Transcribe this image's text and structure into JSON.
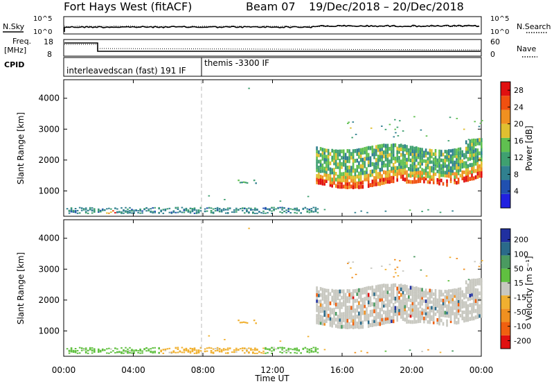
{
  "header": {
    "radar": "Fort Hays West (fitACF)",
    "beam": "Beam 07",
    "dates": "19/Dec/2018 – 20/Dec/2018"
  },
  "noise_panel": {
    "left_label": "N.Sky",
    "right_label": "N.Search",
    "ticks_left": [
      "10^5",
      "10^0"
    ],
    "ticks_right": [
      "10^5",
      "10^0"
    ]
  },
  "freq_panel": {
    "left_label_line1": "Freq.",
    "left_label_line2": "[MHz]",
    "right_label": "Nave",
    "ticks_left": [
      "18",
      "8"
    ],
    "ticks_right": [
      "60",
      "0"
    ]
  },
  "cpid_panel": {
    "label": "CPID",
    "modes": [
      "interleavedscan (fast) 191 IF",
      "themis -3300 IF"
    ]
  },
  "x_axis": {
    "label": "Time UT",
    "ticks": [
      "00:00",
      "04:00",
      "08:00",
      "12:00",
      "16:00",
      "20:00",
      "00:00"
    ]
  },
  "power_panel": {
    "ylabel": "Slant Range [km]",
    "yticks": [
      "1000",
      "2000",
      "3000",
      "4000"
    ],
    "colorbar_label": "Power [dB]",
    "colorbar_ticks": [
      "4",
      "8",
      "12",
      "16",
      "20",
      "24",
      "28"
    ],
    "colors": [
      "#2020e0",
      "#2050b0",
      "#30808f",
      "#3fa070",
      "#60c050",
      "#e0c030",
      "#f09020",
      "#f05010",
      "#e01010"
    ]
  },
  "velocity_panel": {
    "ylabel": "Slant Range [km]",
    "yticks": [
      "1000",
      "2000",
      "3000",
      "4000"
    ],
    "colorbar_label": "Velocity [m s⁻¹]",
    "colorbar_ticks": [
      "200",
      "100",
      "50",
      "15",
      "-15",
      "-50",
      "-100",
      "-200"
    ],
    "colors": [
      "#2030a0",
      "#2a6a8a",
      "#4a9a60",
      "#60c040",
      "#c8c8c0",
      "#f0b030",
      "#f09020",
      "#f06010",
      "#e01010"
    ]
  },
  "chart_data": [
    {
      "type": "heatmap",
      "title": "Power [dB]",
      "xlabel": "Time UT",
      "ylabel": "Slant Range [km]",
      "x_range_hours": [
        0,
        24
      ],
      "ylim": [
        180,
        4600
      ],
      "value_range": [
        0,
        30
      ],
      "marker_time": "08:00",
      "regions": [
        {
          "start_h": 0.0,
          "end_h": 14.5,
          "range_km": [
            250,
            450
          ],
          "power_dB": 8
        },
        {
          "start_h": 10.0,
          "end_h": 11.2,
          "range_km": [
            1200,
            1350
          ],
          "power_dB": 10
        },
        {
          "start_h": 14.5,
          "end_h": 24.0,
          "range_km": [
            1000,
            2500
          ],
          "power_dB": 20,
          "lower_edge_dB": 26
        }
      ]
    },
    {
      "type": "heatmap",
      "title": "Velocity [m s⁻¹]",
      "xlabel": "Time UT",
      "ylabel": "Slant Range [km]",
      "x_range_hours": [
        0,
        24
      ],
      "ylim": [
        180,
        4600
      ],
      "value_range": [
        -250,
        250
      ],
      "marker_time": "08:00",
      "regions": [
        {
          "start_h": 0.0,
          "end_h": 5.5,
          "range_km": [
            250,
            450
          ],
          "velocity_ms": 40
        },
        {
          "start_h": 5.5,
          "end_h": 11.5,
          "range_km": [
            250,
            450
          ],
          "velocity_ms": -40
        },
        {
          "start_h": 11.5,
          "end_h": 14.5,
          "range_km": [
            250,
            450
          ],
          "velocity_ms": 40
        },
        {
          "start_h": 10.0,
          "end_h": 11.2,
          "range_km": [
            1200,
            1350
          ],
          "velocity_ms": -40
        },
        {
          "start_h": 14.5,
          "end_h": 24.0,
          "range_km": [
            1000,
            2500
          ],
          "velocity_ms": 0
        }
      ]
    }
  ]
}
